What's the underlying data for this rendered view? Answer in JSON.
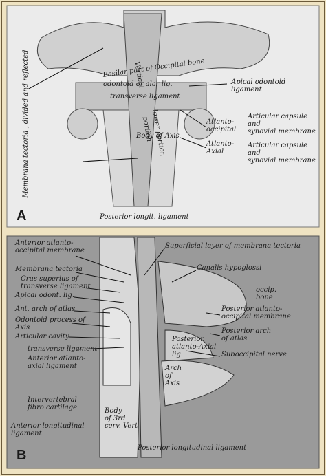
{
  "panels": [
    {
      "letter": "A",
      "labels": [
        [
          "Membrana tectoria , divided and reflected"
        ],
        [
          "Basilar part of Occipital bone"
        ],
        [
          "Vertical"
        ],
        [
          "portion"
        ],
        [
          "odontoid or alar lig."
        ],
        [
          "transverse ligament"
        ],
        [
          "lower portion"
        ],
        [
          "Apical odontoid",
          "ligament"
        ],
        [
          "Atlanto-",
          "occipital"
        ],
        [
          "Articular capsule",
          "and",
          "synovial membrane"
        ],
        [
          "Atlanto-",
          "Axial"
        ],
        [
          "Articular capsule",
          "and",
          "synovial membrane"
        ],
        [
          "Body of Axis"
        ],
        [
          "Posterior longit. ligament"
        ]
      ]
    },
    {
      "letter": "B",
      "labels": [
        [
          "Anterior atlanto-",
          "occipital membrane"
        ],
        [
          "Superficial layer of membrana tectoria"
        ],
        [
          "Canalis hypoglossi"
        ],
        [
          "Membrana tectoria"
        ],
        [
          "Crus superius of",
          "transverse ligament"
        ],
        [
          "Apical odont. lig."
        ],
        [
          "Ant. arch of atlas"
        ],
        [
          "Odontoid process of",
          "Axis"
        ],
        [
          "Articular cavity"
        ],
        [
          "transverse ligament"
        ],
        [
          "Anterior atlanto-",
          "axial ligament"
        ],
        [
          "occip.",
          "bone"
        ],
        [
          "Posterior atlanto-",
          "occipital membrane"
        ],
        [
          "Posterior arch",
          "of atlas"
        ],
        [
          "Posterior",
          "atlanto-Axial",
          "lig."
        ],
        [
          "Suboccipital nerve"
        ],
        [
          "Arch",
          "of",
          "Axis"
        ],
        [
          "Intervertebral",
          "fibro cartilage"
        ],
        [
          "Body",
          "of 3rd",
          "cerv. Vert"
        ],
        [
          "Anterior longitudinal",
          "ligament"
        ],
        [
          "Posterior longitudinal ligament"
        ]
      ]
    }
  ]
}
